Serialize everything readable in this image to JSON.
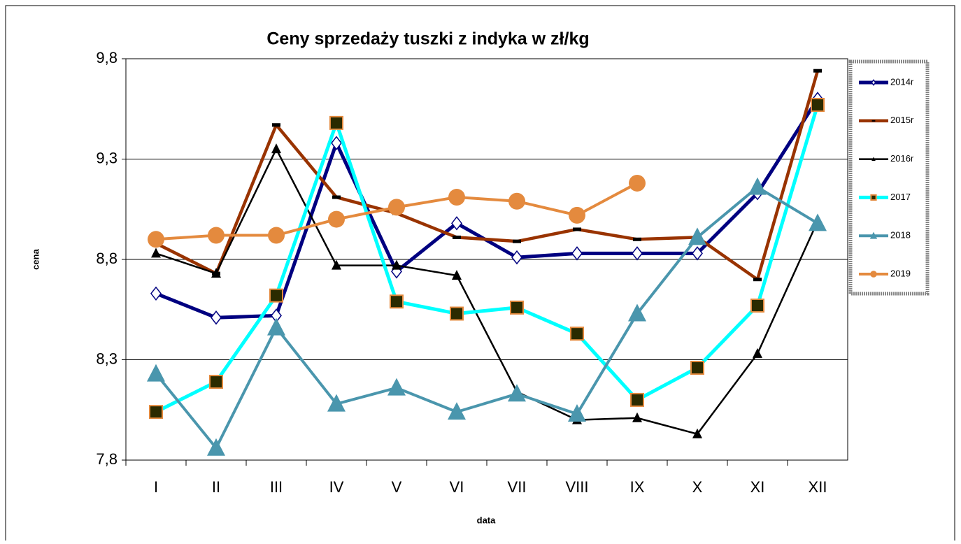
{
  "chart_data": {
    "type": "line",
    "title": "Ceny sprzedaży tuszki z indyka w zł/kg",
    "x_label": "data",
    "y_label": "cena",
    "categories": [
      "I",
      "II",
      "III",
      "IV",
      "V",
      "VI",
      "VII",
      "VIII",
      "IX",
      "X",
      "XI",
      "XII"
    ],
    "ylim": [
      7.8,
      9.8
    ],
    "yticks": [
      {
        "value": 7.8,
        "label": "7,8"
      },
      {
        "value": 8.3,
        "label": "8,3"
      },
      {
        "value": 8.8,
        "label": "8,8"
      },
      {
        "value": 9.3,
        "label": "9,3"
      },
      {
        "value": 9.8,
        "label": "9,8"
      }
    ],
    "grid": true,
    "legend": "right",
    "series": [
      {
        "name": "2014r",
        "color": "#000080",
        "marker": "diamond",
        "values": [
          8.63,
          8.51,
          8.52,
          9.38,
          8.74,
          8.98,
          8.81,
          8.83,
          8.83,
          8.83,
          9.13,
          9.6
        ]
      },
      {
        "name": "2015r",
        "color": "#993300",
        "marker": "dash",
        "values": [
          8.88,
          8.73,
          9.47,
          9.11,
          9.03,
          8.91,
          8.89,
          8.95,
          8.9,
          8.91,
          8.7,
          9.74
        ]
      },
      {
        "name": "2016r",
        "color": "#000000",
        "marker": "small-triangle",
        "values": [
          8.83,
          8.73,
          9.35,
          8.77,
          8.77,
          8.72,
          8.14,
          8.0,
          8.01,
          7.93,
          8.33,
          8.99
        ]
      },
      {
        "name": "2017",
        "color": "#00ffff",
        "marker": "square",
        "values": [
          8.04,
          8.19,
          8.62,
          9.48,
          8.59,
          8.53,
          8.56,
          8.43,
          8.1,
          8.26,
          8.57,
          9.57
        ]
      },
      {
        "name": "2018",
        "color": "#4a96ad",
        "marker": "triangle",
        "values": [
          8.23,
          7.86,
          8.46,
          8.08,
          8.16,
          8.04,
          8.13,
          8.03,
          8.53,
          8.91,
          9.16,
          8.98
        ]
      },
      {
        "name": "2019",
        "color": "#e48a3e",
        "marker": "circle",
        "values": [
          8.9,
          8.92,
          8.92,
          9.0,
          9.06,
          9.11,
          9.09,
          9.02,
          9.18,
          null,
          null,
          null
        ]
      }
    ]
  }
}
